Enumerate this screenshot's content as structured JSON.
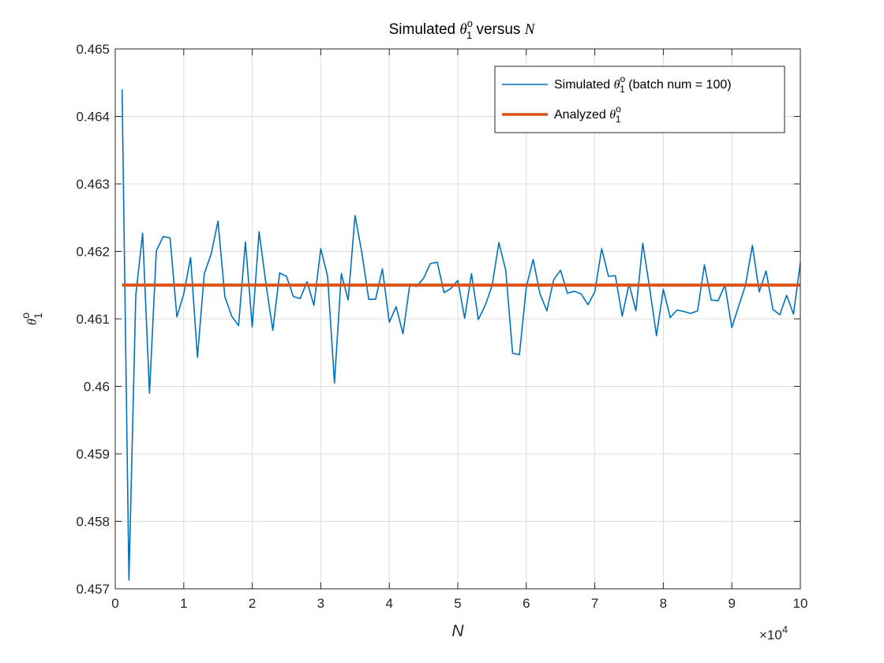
{
  "chart_data": {
    "type": "line",
    "title": {
      "prefix": "Simulated ",
      "symbol": "θ",
      "sup": "o",
      "sub": "1",
      "suffix": " versus ",
      "var": "N"
    },
    "xlabel": "N",
    "ylabel": {
      "symbol": "θ",
      "sup": "o",
      "sub": "1"
    },
    "xlim": [
      0,
      100000
    ],
    "ylim": [
      0.457,
      0.465
    ],
    "x_exponent": {
      "base": "×10",
      "power": "4"
    },
    "x_ticks": [
      0,
      10000,
      20000,
      30000,
      40000,
      50000,
      60000,
      70000,
      80000,
      90000,
      100000
    ],
    "x_tick_labels": [
      "0",
      "1",
      "2",
      "3",
      "4",
      "5",
      "6",
      "7",
      "8",
      "9",
      "10"
    ],
    "y_ticks": [
      0.457,
      0.458,
      0.459,
      0.46,
      0.461,
      0.462,
      0.463,
      0.464,
      0.465
    ],
    "y_tick_labels": [
      "0.457",
      "0.458",
      "0.459",
      "0.46",
      "0.461",
      "0.462",
      "0.463",
      "0.464",
      "0.465"
    ],
    "grid": true,
    "legend_position": "top-right",
    "series": [
      {
        "legend": {
          "prefix": "Simulated ",
          "symbol": "θ",
          "sup": "o",
          "sub": "1",
          "suffix": " (batch num = 100)"
        },
        "color": "#0072BD",
        "x": [
          1000,
          2000,
          3000,
          4000,
          5000,
          6000,
          7000,
          8000,
          9000,
          10000,
          11000,
          12000,
          13000,
          14000,
          15000,
          16000,
          17000,
          18000,
          19000,
          20000,
          21000,
          22000,
          23000,
          24000,
          25000,
          26000,
          27000,
          28000,
          29000,
          30000,
          31000,
          32000,
          33000,
          34000,
          35000,
          36000,
          37000,
          38000,
          39000,
          40000,
          41000,
          42000,
          43000,
          44000,
          45000,
          46000,
          47000,
          48000,
          49000,
          50000,
          51000,
          52000,
          53000,
          54000,
          55000,
          56000,
          57000,
          58000,
          59000,
          60000,
          61000,
          62000,
          63000,
          64000,
          65000,
          66000,
          67000,
          68000,
          69000,
          70000,
          71000,
          72000,
          73000,
          74000,
          75000,
          76000,
          77000,
          78000,
          79000,
          80000,
          81000,
          82000,
          83000,
          84000,
          85000,
          86000,
          87000,
          88000,
          89000,
          90000,
          91000,
          92000,
          93000,
          94000,
          95000,
          96000,
          97000,
          98000,
          99000,
          100000
        ],
        "values": [
          0.4644,
          0.45713,
          0.46135,
          0.46227,
          0.4599,
          0.46201,
          0.46222,
          0.4622,
          0.46103,
          0.46137,
          0.46191,
          0.46043,
          0.46167,
          0.46196,
          0.46245,
          0.46133,
          0.46104,
          0.4609,
          0.46214,
          0.46088,
          0.46229,
          0.46152,
          0.46083,
          0.46168,
          0.46163,
          0.46133,
          0.4613,
          0.46155,
          0.4612,
          0.46204,
          0.46163,
          0.46005,
          0.46167,
          0.46128,
          0.46253,
          0.46198,
          0.46129,
          0.46129,
          0.46174,
          0.46095,
          0.46118,
          0.46078,
          0.46151,
          0.46148,
          0.4616,
          0.46182,
          0.46184,
          0.46139,
          0.46145,
          0.46157,
          0.46101,
          0.46167,
          0.46099,
          0.4612,
          0.46149,
          0.46213,
          0.46172,
          0.46049,
          0.46047,
          0.46147,
          0.46188,
          0.46137,
          0.46112,
          0.46158,
          0.46172,
          0.46138,
          0.46141,
          0.46137,
          0.46121,
          0.4614,
          0.46204,
          0.46163,
          0.46164,
          0.46104,
          0.46152,
          0.46112,
          0.46212,
          0.46146,
          0.46075,
          0.46144,
          0.46102,
          0.46113,
          0.46111,
          0.46108,
          0.46112,
          0.4618,
          0.46128,
          0.46127,
          0.4615,
          0.46087,
          0.46119,
          0.4615,
          0.46209,
          0.4614,
          0.46171,
          0.46114,
          0.46106,
          0.46135,
          0.46107,
          0.46183
        ]
      },
      {
        "legend": {
          "prefix": "Analyzed ",
          "symbol": "θ",
          "sup": "o",
          "sub": "1",
          "suffix": ""
        },
        "color": "#D95319",
        "x": [
          1000,
          100000
        ],
        "values": [
          0.4615,
          0.4615
        ]
      }
    ]
  }
}
